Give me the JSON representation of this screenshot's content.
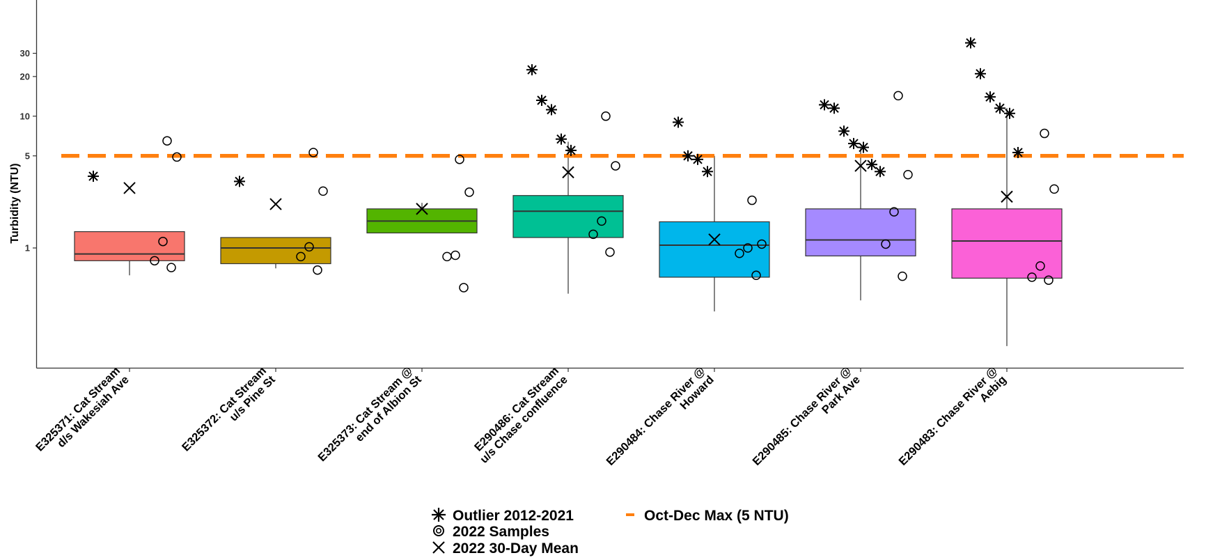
{
  "chart_data": {
    "type": "box",
    "ylabel": "Turbidity (NTU)",
    "y_scale": "log",
    "ylim": [
      0.16,
      40
    ],
    "y_ticks": [
      1,
      5,
      10,
      20,
      30
    ],
    "y_tick_labels": [
      "1",
      "5",
      "10",
      "20",
      "30"
    ],
    "grid": false,
    "threshold": {
      "value": 5,
      "label": "Oct-Dec Max (5 NTU)",
      "color": "#ff7f0e"
    },
    "categories": [
      {
        "lines": [
          "E325371: Cat Stream",
          "d/s Wakesiah Ave"
        ],
        "color": "#f8766d",
        "box": {
          "whisker_low": 0.62,
          "q1": 0.8,
          "median": 0.9,
          "q3": 1.33,
          "whisker_high": 1.33
        },
        "outliers": [
          3.5
        ],
        "samples": [
          6.5,
          4.9,
          1.12,
          0.8,
          0.71
        ],
        "mean_30day": 2.85
      },
      {
        "lines": [
          "E325372: Cat Stream",
          "u/s Pine St"
        ],
        "color": "#c49a00",
        "box": {
          "whisker_low": 0.7,
          "q1": 0.76,
          "median": 1.0,
          "q3": 1.2,
          "whisker_high": 1.2
        },
        "outliers": [
          3.2
        ],
        "samples": [
          5.3,
          2.7,
          1.02,
          0.86,
          0.68
        ],
        "mean_30day": 2.15
      },
      {
        "lines": [
          "E325373: Cat Stream @",
          "end of Albion St"
        ],
        "color": "#53b400",
        "box": {
          "whisker_low": 1.3,
          "q1": 1.3,
          "median": 1.6,
          "q3": 1.98,
          "whisker_high": 2.2
        },
        "outliers": [],
        "samples": [
          4.7,
          2.65,
          0.88,
          0.86,
          0.5
        ],
        "mean_30day": 1.98
      },
      {
        "lines": [
          "E290486: Cat Stream",
          "u/s Chase confluence"
        ],
        "color": "#00c094",
        "box": {
          "whisker_low": 0.45,
          "q1": 1.2,
          "median": 1.9,
          "q3": 2.5,
          "whisker_high": 6.4
        },
        "outliers": [
          22.5,
          13.2,
          11.2,
          6.7,
          5.5
        ],
        "samples": [
          10.0,
          4.2,
          1.6,
          1.27,
          0.93
        ],
        "mean_30day": 3.75
      },
      {
        "lines": [
          "E290484: Chase River @",
          "Howard"
        ],
        "color": "#00b6eb",
        "box": {
          "whisker_low": 0.33,
          "q1": 0.6,
          "median": 1.05,
          "q3": 1.58,
          "whisker_high": 5.0
        },
        "outliers": [
          9.0,
          5.0,
          4.7,
          3.8
        ],
        "samples": [
          2.3,
          1.07,
          1.0,
          0.91,
          0.62
        ],
        "mean_30day": 1.16
      },
      {
        "lines": [
          "E290485: Chase River @",
          "Park Ave"
        ],
        "color": "#a58aff",
        "box": {
          "whisker_low": 0.4,
          "q1": 0.87,
          "median": 1.15,
          "q3": 1.98,
          "whisker_high": 5.8
        },
        "outliers": [
          12.2,
          11.5,
          7.7,
          6.2,
          5.8,
          4.3,
          3.8
        ],
        "samples": [
          14.3,
          3.6,
          1.88,
          1.07,
          0.61
        ],
        "mean_30day": 4.2
      },
      {
        "lines": [
          "E290483: Chase River @",
          "Aebig"
        ],
        "color": "#fb61d7",
        "box": {
          "whisker_low": 0.18,
          "q1": 0.59,
          "median": 1.13,
          "q3": 1.98,
          "whisker_high": 11.5
        },
        "outliers": [
          36.0,
          21.0,
          14.0,
          11.5,
          10.5,
          5.3
        ],
        "samples": [
          7.4,
          2.8,
          0.73,
          0.6,
          0.57
        ],
        "mean_30day": 2.45
      }
    ]
  },
  "legend": {
    "outlier": "Outlier 2012-2021",
    "samples": "2022 Samples",
    "mean": "2022 30-Day Mean",
    "threshold": "Oct-Dec Max (5 NTU)"
  }
}
